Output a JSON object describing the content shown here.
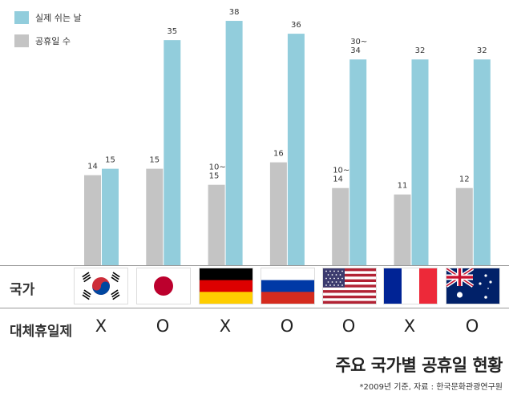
{
  "chart_data": {
    "type": "bar",
    "categories": [
      "대한민국",
      "일본",
      "독일",
      "러시아",
      "미국",
      "프랑스",
      "호주"
    ],
    "series": [
      {
        "name": "공휴일 수",
        "values": [
          14,
          15,
          12.5,
          16,
          12,
          11,
          12
        ],
        "labels": [
          "14",
          "15",
          "10~\n15",
          "16",
          "10~\n14",
          "11",
          "12"
        ],
        "color": "#c4c4c4"
      },
      {
        "name": "실제 쉬는 날",
        "values": [
          15,
          35,
          38,
          36,
          32,
          32,
          32
        ],
        "labels": [
          "15",
          "35",
          "38",
          "36",
          "30~\n34",
          "32",
          "32"
        ],
        "color": "#92cddc"
      }
    ],
    "ylim": [
      0,
      40
    ],
    "grid": false,
    "legend": "top-left",
    "title": "",
    "xlabel": "",
    "ylabel": ""
  },
  "legend": [
    {
      "label": "실제 쉬는 날",
      "color": "#92cddc"
    },
    {
      "label": "공휴일 수",
      "color": "#c4c4c4"
    }
  ],
  "table": {
    "row1_label": "국가",
    "row2_label": "대체휴일제",
    "flags": [
      "south-korea-flag-icon",
      "japan-flag-icon",
      "germany-flag-icon",
      "russia-flag-icon",
      "usa-flag-icon",
      "france-flag-icon",
      "australia-flag-icon"
    ],
    "substitute_holiday": [
      "X",
      "O",
      "X",
      "O",
      "O",
      "X",
      "O"
    ]
  },
  "caption": {
    "title": "주요 국가별 공휴일 현황",
    "source": "*2009년 기준, 자료 : 한국문화관광연구원"
  }
}
